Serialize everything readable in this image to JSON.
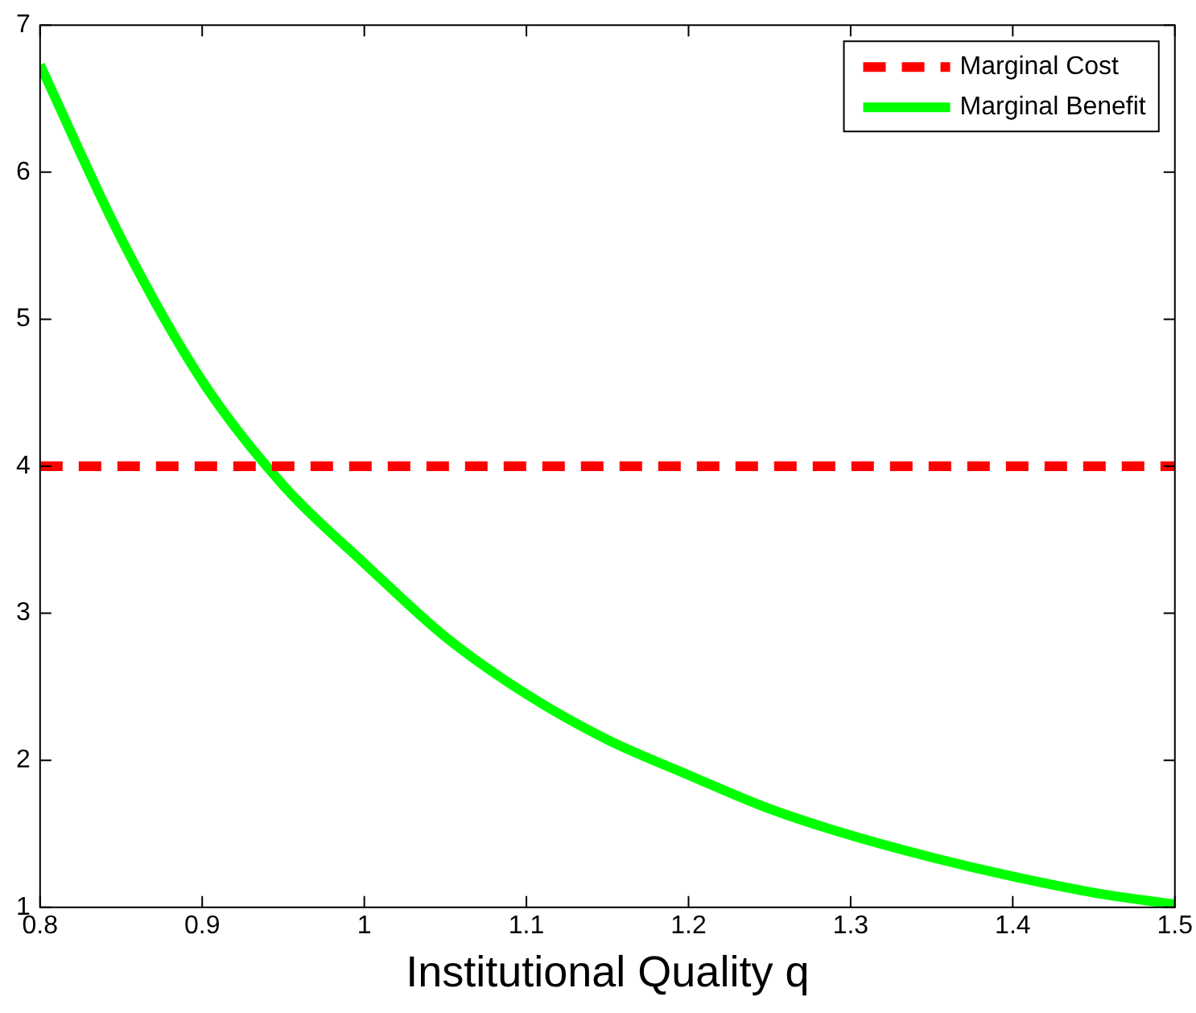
{
  "chart_data": {
    "type": "line",
    "xlabel": "Institutional Quality q",
    "xlim": [
      0.8,
      1.5
    ],
    "xticks": [
      0.8,
      0.9,
      1,
      1.1,
      1.2,
      1.3,
      1.4,
      1.5
    ],
    "ylim": [
      1,
      7
    ],
    "yticks": [
      1,
      2,
      3,
      4,
      5,
      6,
      7
    ],
    "grid": false,
    "legend": "top right",
    "marker": "none",
    "series": [
      {
        "name": "Marginal Cost",
        "color": "#ff0000",
        "line_style": "dashed",
        "x": [
          0.8,
          1.5
        ],
        "values": [
          4,
          4
        ]
      },
      {
        "name": "Marginal Benefit",
        "color": "#00ff00",
        "line_style": "solid",
        "x": [
          0.8,
          0.85,
          0.9,
          0.95,
          1,
          1.05,
          1.1,
          1.15,
          1.2,
          1.25,
          1.3,
          1.35,
          1.4,
          1.45,
          1.5
        ],
        "values": [
          6.73,
          5.55,
          4.58,
          3.87,
          3.34,
          2.84,
          2.45,
          2.14,
          1.9,
          1.67,
          1.49,
          1.34,
          1.21,
          1.1,
          1.02
        ]
      }
    ]
  }
}
